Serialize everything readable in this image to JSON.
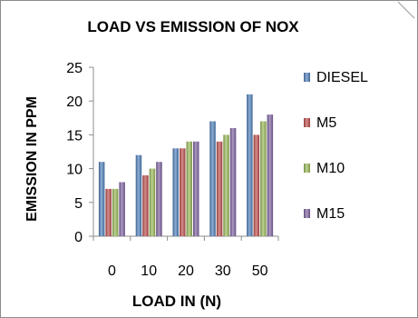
{
  "chart_data": {
    "type": "bar",
    "title": "LOAD VS EMISSION OF NOX",
    "xlabel": "LOAD IN (N)",
    "ylabel": "EMISSION IN PPM",
    "categories": [
      "0",
      "10",
      "20",
      "30",
      "50"
    ],
    "ylim": [
      0,
      25
    ],
    "yticks": [
      0,
      5,
      10,
      15,
      20,
      25
    ],
    "grid": false,
    "legend_position": "right",
    "series": [
      {
        "name": "DIESEL",
        "color": "#4F81BD",
        "values": [
          11,
          12,
          13,
          17,
          21
        ]
      },
      {
        "name": "M5",
        "color": "#C0504D",
        "values": [
          7,
          9,
          13,
          14,
          15
        ]
      },
      {
        "name": "M10",
        "color": "#9BBB59",
        "values": [
          7,
          10,
          14,
          15,
          17
        ]
      },
      {
        "name": "M15",
        "color": "#8064A2",
        "values": [
          8,
          11,
          14,
          16,
          18
        ]
      }
    ]
  }
}
